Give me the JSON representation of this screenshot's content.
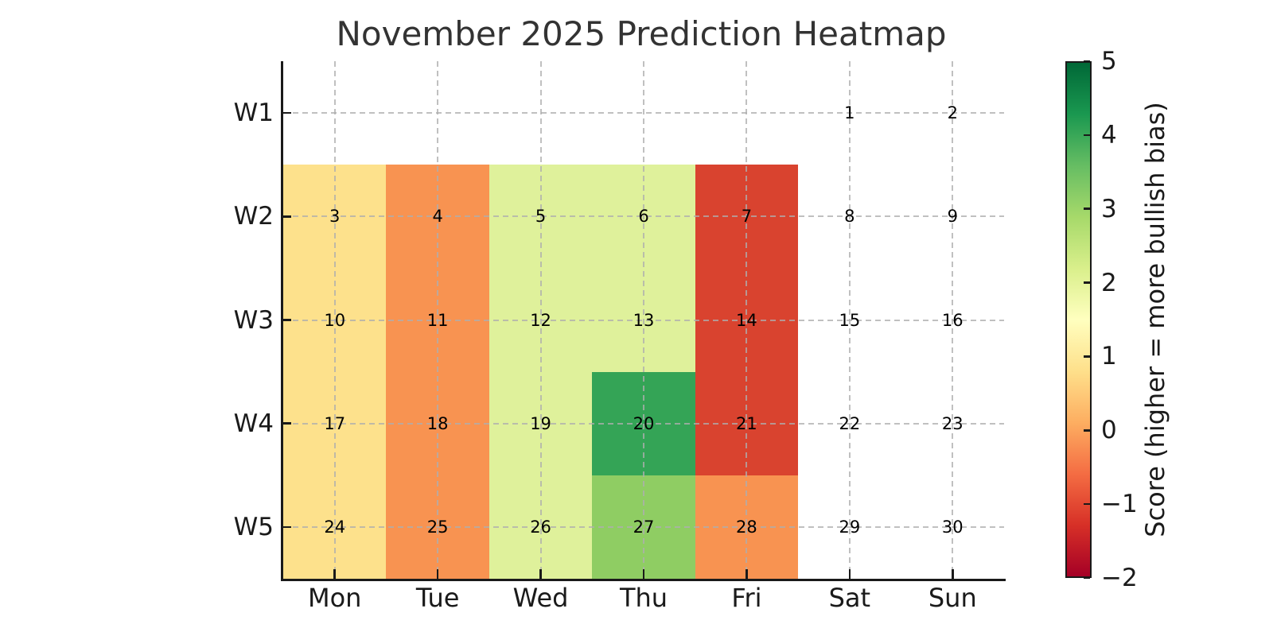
{
  "chart_data": {
    "type": "heatmap",
    "title": "November 2025 Prediction Heatmap",
    "columns": [
      "Mon",
      "Tue",
      "Wed",
      "Thu",
      "Fri",
      "Sat",
      "Sun"
    ],
    "rows": [
      "W1",
      "W2",
      "W3",
      "W4",
      "W5"
    ],
    "cells": [
      {
        "day": 1,
        "row": "W1",
        "col": "Sat",
        "score": null
      },
      {
        "day": 2,
        "row": "W1",
        "col": "Sun",
        "score": null
      },
      {
        "day": 3,
        "row": "W2",
        "col": "Mon",
        "score": 1
      },
      {
        "day": 4,
        "row": "W2",
        "col": "Tue",
        "score": 0
      },
      {
        "day": 5,
        "row": "W2",
        "col": "Wed",
        "score": 2
      },
      {
        "day": 6,
        "row": "W2",
        "col": "Thu",
        "score": 2
      },
      {
        "day": 7,
        "row": "W2",
        "col": "Fri",
        "score": -1
      },
      {
        "day": 8,
        "row": "W2",
        "col": "Sat",
        "score": null
      },
      {
        "day": 9,
        "row": "W2",
        "col": "Sun",
        "score": null
      },
      {
        "day": 10,
        "row": "W3",
        "col": "Mon",
        "score": 1
      },
      {
        "day": 11,
        "row": "W3",
        "col": "Tue",
        "score": 0
      },
      {
        "day": 12,
        "row": "W3",
        "col": "Wed",
        "score": 2
      },
      {
        "day": 13,
        "row": "W3",
        "col": "Thu",
        "score": 2
      },
      {
        "day": 14,
        "row": "W3",
        "col": "Fri",
        "score": -1
      },
      {
        "day": 15,
        "row": "W3",
        "col": "Sat",
        "score": null
      },
      {
        "day": 16,
        "row": "W3",
        "col": "Sun",
        "score": null
      },
      {
        "day": 17,
        "row": "W4",
        "col": "Mon",
        "score": 1
      },
      {
        "day": 18,
        "row": "W4",
        "col": "Tue",
        "score": 0
      },
      {
        "day": 19,
        "row": "W4",
        "col": "Wed",
        "score": 2
      },
      {
        "day": 20,
        "row": "W4",
        "col": "Thu",
        "score": 4
      },
      {
        "day": 21,
        "row": "W4",
        "col": "Fri",
        "score": -1
      },
      {
        "day": 22,
        "row": "W4",
        "col": "Sat",
        "score": null
      },
      {
        "day": 23,
        "row": "W4",
        "col": "Sun",
        "score": null
      },
      {
        "day": 24,
        "row": "W5",
        "col": "Mon",
        "score": 1
      },
      {
        "day": 25,
        "row": "W5",
        "col": "Tue",
        "score": 0
      },
      {
        "day": 26,
        "row": "W5",
        "col": "Wed",
        "score": 2
      },
      {
        "day": 27,
        "row": "W5",
        "col": "Thu",
        "score": 3
      },
      {
        "day": 28,
        "row": "W5",
        "col": "Fri",
        "score": 0
      },
      {
        "day": 29,
        "row": "W5",
        "col": "Sat",
        "score": null
      },
      {
        "day": 30,
        "row": "W5",
        "col": "Sun",
        "score": null
      }
    ],
    "score_colors": {
      "-1": "#D9432F",
      "0": "#F89351",
      "1": "#FDE18C",
      "2": "#DFF19B",
      "3": "#8FCD63",
      "4": "#34A456"
    },
    "no_data_color": "#FFFFFF",
    "colorbar": {
      "label": "Score (higher = more bullish bias)",
      "ticks": [
        "5",
        "4",
        "3",
        "2",
        "1",
        "0",
        "−1",
        "−2"
      ],
      "vmin": -2,
      "vmax": 5,
      "colormap": "RdYlGn",
      "gradient_stops_bottom_to_top": [
        "#A50026",
        "#D73027",
        "#F46D43",
        "#FDAE61",
        "#FEE08B",
        "#FFFFBF",
        "#D9EF8B",
        "#A6D96A",
        "#66BD63",
        "#1A9850",
        "#006837"
      ]
    },
    "grid": "dashed",
    "legend_position": "right-colorbar",
    "background": "#ffffff"
  }
}
